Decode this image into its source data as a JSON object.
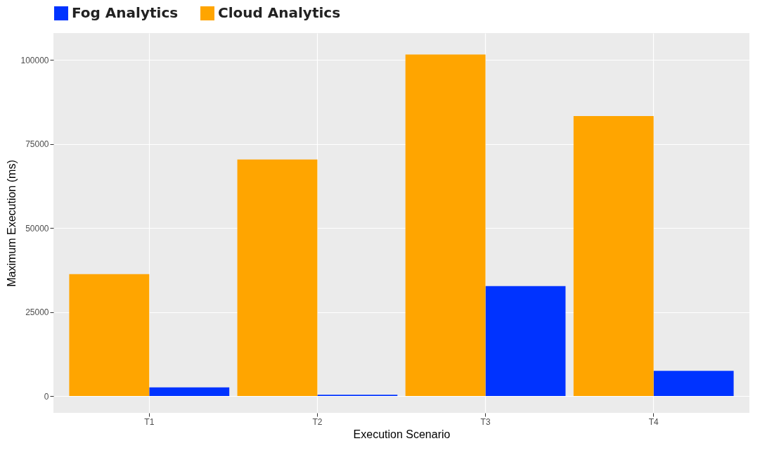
{
  "chart_data": {
    "type": "bar",
    "xlabel": "Execution Scenario",
    "ylabel": "Maximum Execution (ms)",
    "categories": [
      "T1",
      "T2",
      "T3",
      "T4"
    ],
    "series": [
      {
        "name": "Fog Analytics",
        "color": "#0033ff",
        "values": [
          2600,
          400,
          32700,
          7500
        ]
      },
      {
        "name": "Cloud Analytics",
        "color": "#ffa500",
        "values": [
          36300,
          70400,
          101600,
          83300
        ]
      }
    ],
    "ylim": [
      -5000,
      108000
    ],
    "yticks": [
      0,
      25000,
      50000,
      75000,
      100000
    ],
    "grid": true,
    "legend": "top"
  }
}
